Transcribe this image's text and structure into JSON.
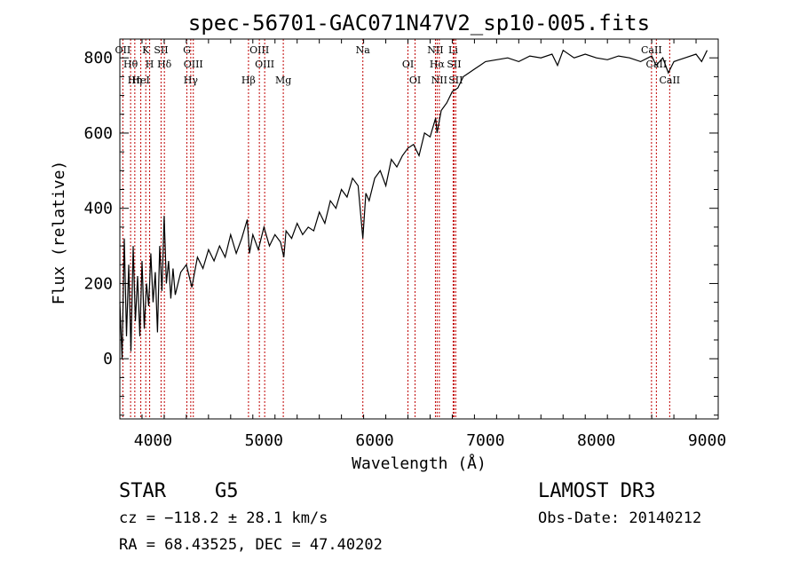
{
  "chart_data": {
    "type": "line",
    "title": "spec-56701-GAC071N47V2_sp10-005.fits",
    "xlabel": "Wavelength (Å)",
    "ylabel": "Flux (relative)",
    "xlim": [
      3700,
      9100
    ],
    "ylim": [
      -160,
      850
    ],
    "xticks": [
      4000,
      5000,
      6000,
      7000,
      8000,
      9000
    ],
    "xtick_labels": [
      "4000",
      "5000",
      "6000",
      "7000",
      "8000",
      "9000"
    ],
    "yticks": [
      0,
      200,
      400,
      600,
      800
    ],
    "ytick_labels": [
      "0",
      "200",
      "400",
      "600",
      "800"
    ],
    "series": [
      {
        "name": "flux",
        "x": [
          3700,
          3720,
          3740,
          3760,
          3780,
          3800,
          3820,
          3840,
          3860,
          3880,
          3900,
          3920,
          3940,
          3960,
          3980,
          4000,
          4020,
          4040,
          4060,
          4080,
          4100,
          4120,
          4140,
          4160,
          4180,
          4200,
          4250,
          4300,
          4350,
          4400,
          4450,
          4500,
          4550,
          4600,
          4650,
          4700,
          4750,
          4800,
          4850,
          4870,
          4900,
          4950,
          5000,
          5050,
          5100,
          5150,
          5180,
          5200,
          5250,
          5300,
          5350,
          5400,
          5450,
          5500,
          5550,
          5600,
          5650,
          5700,
          5750,
          5800,
          5850,
          5893,
          5920,
          5950,
          6000,
          6050,
          6100,
          6150,
          6200,
          6250,
          6300,
          6350,
          6400,
          6450,
          6500,
          6550,
          6563,
          6600,
          6650,
          6700,
          6750,
          6800,
          6850,
          6900,
          6950,
          7000,
          7100,
          7200,
          7300,
          7400,
          7500,
          7600,
          7650,
          7700,
          7800,
          7900,
          8000,
          8100,
          8200,
          8300,
          8400,
          8500,
          8540,
          8600,
          8650,
          8700,
          8800,
          8900,
          8950,
          9000
        ],
        "values": [
          150,
          0,
          320,
          60,
          250,
          20,
          300,
          100,
          220,
          60,
          260,
          80,
          200,
          140,
          280,
          150,
          230,
          70,
          300,
          180,
          380,
          200,
          260,
          160,
          240,
          170,
          230,
          250,
          190,
          270,
          240,
          290,
          260,
          300,
          270,
          330,
          280,
          320,
          370,
          280,
          330,
          290,
          350,
          300,
          330,
          310,
          270,
          340,
          320,
          360,
          330,
          350,
          340,
          390,
          360,
          420,
          400,
          450,
          430,
          480,
          460,
          320,
          440,
          420,
          480,
          500,
          460,
          530,
          510,
          540,
          560,
          570,
          540,
          600,
          590,
          640,
          600,
          660,
          680,
          710,
          720,
          750,
          760,
          770,
          780,
          790,
          795,
          800,
          790,
          805,
          800,
          810,
          780,
          820,
          800,
          810,
          800,
          795,
          805,
          800,
          790,
          805,
          780,
          800,
          760,
          790,
          800,
          810,
          790,
          820
        ]
      }
    ],
    "line_markers": [
      {
        "label": "OII",
        "wavelength": 3727
      },
      {
        "label": "Hθ",
        "wavelength": 3797
      },
      {
        "label": "Hη",
        "wavelength": 3835
      },
      {
        "label": "K",
        "wavelength": 3934
      },
      {
        "label": "H",
        "wavelength": 3969
      },
      {
        "label": "HeI",
        "wavelength": 3889
      },
      {
        "label": "SII",
        "wavelength": 4072
      },
      {
        "label": "Hδ",
        "wavelength": 4102
      },
      {
        "label": "Hγ",
        "wavelength": 4340
      },
      {
        "label": "G",
        "wavelength": 4305
      },
      {
        "label": "OIII",
        "wavelength": 4363
      },
      {
        "label": "Hβ",
        "wavelength": 4861
      },
      {
        "label": "OIII",
        "wavelength": 4959
      },
      {
        "label": "OIII",
        "wavelength": 5007
      },
      {
        "label": "Mg",
        "wavelength": 5175
      },
      {
        "label": "Na",
        "wavelength": 5893
      },
      {
        "label": "OI",
        "wavelength": 6300
      },
      {
        "label": "OI",
        "wavelength": 6364
      },
      {
        "label": "NII",
        "wavelength": 6548
      },
      {
        "label": "Hα",
        "wavelength": 6563
      },
      {
        "label": "NII",
        "wavelength": 6583
      },
      {
        "label": "Li",
        "wavelength": 6708
      },
      {
        "label": "SII",
        "wavelength": 6716
      },
      {
        "label": "SII",
        "wavelength": 6731
      },
      {
        "label": "CaII",
        "wavelength": 8498
      },
      {
        "label": "CaII",
        "wavelength": 8542
      },
      {
        "label": "CaII",
        "wavelength": 8662
      }
    ]
  },
  "info": {
    "object_class": "STAR",
    "subclass": "G5",
    "survey": "LAMOST DR3",
    "cz": "cz = −118.2 ± 28.1 km/s",
    "obs_date": "Obs-Date: 20140212",
    "coords": "RA =  68.43525, DEC =  47.40202"
  }
}
